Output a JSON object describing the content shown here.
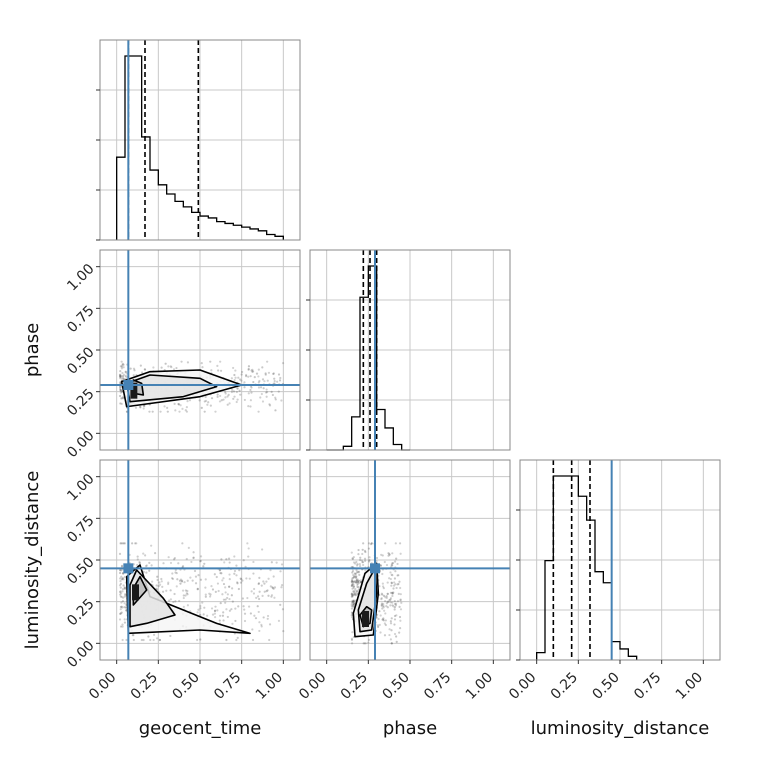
{
  "chart_data": {
    "type": "corner",
    "parameters": [
      "geocent_time",
      "phase",
      "luminosity_distance"
    ],
    "tick_values": [
      0.0,
      0.25,
      0.5,
      0.75,
      1.0
    ],
    "tick_labels": [
      "0.00",
      "0.25",
      "0.50",
      "0.75",
      "1.00"
    ],
    "xlim": [
      -0.1,
      1.1
    ],
    "ylim": [
      -0.1,
      1.1
    ],
    "grid": true,
    "colors": {
      "truth": "#4682b4",
      "contour": "#000000",
      "points": "#555555",
      "grid": "#c8c8c8",
      "frame": "#888888"
    },
    "truths": {
      "geocent_time": 0.07,
      "phase": 0.29,
      "luminosity_distance": 0.45
    },
    "quantiles": {
      "geocent_time": [
        0.07,
        0.17,
        0.49
      ],
      "phase": [
        0.22,
        0.26,
        0.3
      ],
      "luminosity_distance": [
        0.1,
        0.21,
        0.32
      ]
    },
    "histograms": {
      "geocent_time": {
        "edges": [
          0.0,
          0.05,
          0.1,
          0.15,
          0.2,
          0.25,
          0.3,
          0.35,
          0.4,
          0.45,
          0.5,
          0.55,
          0.6,
          0.65,
          0.7,
          0.75,
          0.8,
          0.85,
          0.9,
          0.95,
          1.0
        ],
        "heights": [
          0.45,
          1.0,
          1.0,
          0.56,
          0.38,
          0.3,
          0.25,
          0.21,
          0.18,
          0.15,
          0.13,
          0.12,
          0.1,
          0.09,
          0.08,
          0.07,
          0.06,
          0.05,
          0.03,
          0.02
        ]
      },
      "phase": {
        "edges": [
          0.0,
          0.05,
          0.1,
          0.15,
          0.2,
          0.25,
          0.3,
          0.35,
          0.4,
          0.45,
          0.5
        ],
        "heights": [
          0.0,
          0.0,
          0.02,
          0.18,
          0.83,
          1.0,
          0.22,
          0.12,
          0.03,
          0.0
        ]
      },
      "luminosity_distance": {
        "edges": [
          0.0,
          0.05,
          0.1,
          0.15,
          0.2,
          0.25,
          0.3,
          0.35,
          0.4,
          0.45,
          0.5,
          0.55,
          0.6
        ],
        "heights": [
          0.04,
          0.54,
          1.0,
          1.0,
          1.0,
          0.89,
          0.76,
          0.48,
          0.42,
          0.1,
          0.06,
          0.02
        ]
      }
    },
    "panels_2d": [
      {
        "x": "geocent_time",
        "y": "phase",
        "scatter_extent": {
          "x": [
            0.02,
            1.0
          ],
          "y": [
            0.13,
            0.43
          ]
        },
        "contours": [
          [
            [
              0.1,
              0.24
            ],
            [
              0.16,
              0.23
            ],
            [
              0.15,
              0.3
            ],
            [
              0.1,
              0.32
            ],
            [
              0.08,
              0.28
            ]
          ],
          [
            [
              0.08,
              0.19
            ],
            [
              0.4,
              0.22
            ],
            [
              0.6,
              0.28
            ],
            [
              0.5,
              0.33
            ],
            [
              0.2,
              0.35
            ],
            [
              0.06,
              0.3
            ]
          ],
          [
            [
              0.06,
              0.16
            ],
            [
              0.5,
              0.22
            ],
            [
              0.75,
              0.29
            ],
            [
              0.5,
              0.38
            ],
            [
              0.2,
              0.37
            ],
            [
              0.03,
              0.31
            ]
          ]
        ],
        "density_peak": [
          0.1,
          0.25
        ]
      },
      {
        "x": "geocent_time",
        "y": "luminosity_distance",
        "scatter_extent": {
          "x": [
            0.02,
            1.0
          ],
          "y": [
            0.02,
            0.6
          ]
        },
        "contours": [
          [
            [
              0.1,
              0.23
            ],
            [
              0.18,
              0.32
            ],
            [
              0.14,
              0.4
            ],
            [
              0.1,
              0.33
            ]
          ],
          [
            [
              0.08,
              0.1
            ],
            [
              0.18,
              0.12
            ],
            [
              0.35,
              0.17
            ],
            [
              0.28,
              0.27
            ],
            [
              0.12,
              0.44
            ],
            [
              0.08,
              0.35
            ]
          ],
          [
            [
              0.07,
              0.06
            ],
            [
              0.5,
              0.08
            ],
            [
              0.8,
              0.06
            ],
            [
              0.6,
              0.12
            ],
            [
              0.2,
              0.28
            ],
            [
              0.14,
              0.47
            ],
            [
              0.06,
              0.4
            ]
          ]
        ],
        "density_peak": [
          0.11,
          0.3
        ]
      },
      {
        "x": "phase",
        "y": "luminosity_distance",
        "scatter_extent": {
          "x": [
            0.15,
            0.45
          ],
          "y": [
            0.0,
            0.6
          ]
        },
        "contours": [
          [
            [
              0.22,
              0.1
            ],
            [
              0.26,
              0.12
            ],
            [
              0.27,
              0.2
            ],
            [
              0.24,
              0.22
            ],
            [
              0.2,
              0.17
            ]
          ],
          [
            [
              0.2,
              0.07
            ],
            [
              0.27,
              0.08
            ],
            [
              0.3,
              0.3
            ],
            [
              0.29,
              0.45
            ],
            [
              0.24,
              0.36
            ],
            [
              0.19,
              0.2
            ]
          ],
          [
            [
              0.17,
              0.04
            ],
            [
              0.28,
              0.05
            ],
            [
              0.31,
              0.3
            ],
            [
              0.3,
              0.48
            ],
            [
              0.23,
              0.42
            ],
            [
              0.16,
              0.18
            ]
          ]
        ],
        "density_peak": [
          0.23,
          0.14
        ]
      }
    ]
  }
}
